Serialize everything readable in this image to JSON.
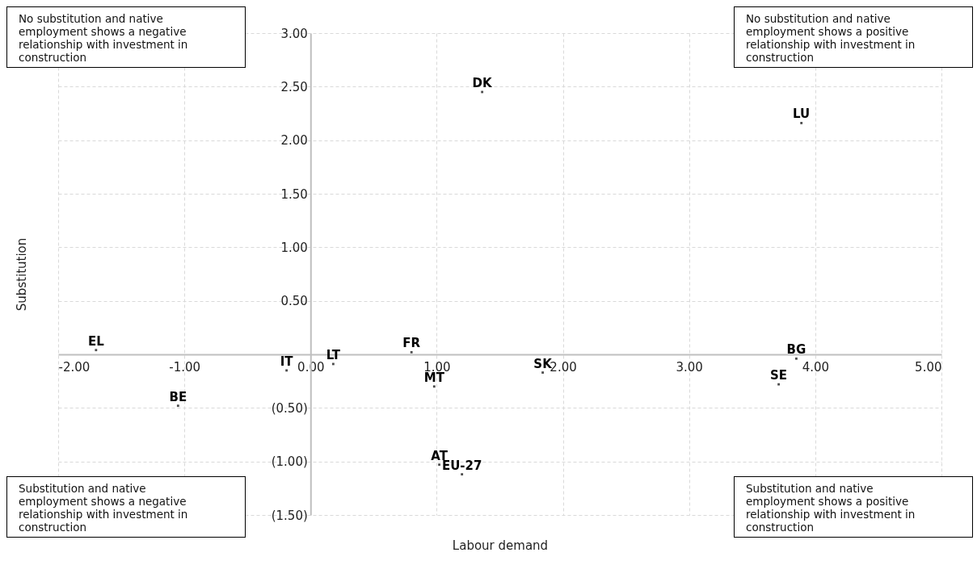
{
  "chart_data": {
    "type": "scatter",
    "xlabel": "Labour demand",
    "ylabel": "Substitution",
    "x": [
      -1.7,
      -1.05,
      -0.19,
      0.18,
      0.8,
      0.98,
      1.84,
      1.36,
      3.89,
      3.85,
      3.71,
      1.02,
      1.2
    ],
    "series": [
      {
        "color": "#000000",
        "values": [
          0.04,
          -0.48,
          -0.15,
          -0.09,
          0.02,
          -0.3,
          -0.17,
          2.45,
          2.16,
          -0.04,
          -0.28,
          -1.03,
          -1.12
        ],
        "value_labels": [
          "EL",
          "BE",
          "IT",
          "LT",
          "FR",
          "MT",
          "SK",
          "DK",
          "LU",
          "BG",
          "SE",
          "AT",
          "EU-27"
        ]
      }
    ],
    "marker": "square",
    "grid": true,
    "legend": false,
    "xlim": [
      -2,
      5
    ],
    "ylim": [
      -1.5,
      3
    ],
    "xticks": [
      {
        "value": -2,
        "label": "-2.00"
      },
      {
        "value": -1,
        "label": "-1.00"
      },
      {
        "value": 0,
        "label": "0.00"
      },
      {
        "value": 1,
        "label": "1.00"
      },
      {
        "value": 2,
        "label": "2.00"
      },
      {
        "value": 3,
        "label": "3.00"
      },
      {
        "value": 4,
        "label": "4.00"
      },
      {
        "value": 5,
        "label": "5.00"
      }
    ],
    "yticks": [
      {
        "value": -1.5,
        "label": "(1.50)"
      },
      {
        "value": -1,
        "label": "(1.00)"
      },
      {
        "value": -0.5,
        "label": "(0.50)"
      },
      {
        "value": 0.5,
        "label": "0.50"
      },
      {
        "value": 1,
        "label": "1.00"
      },
      {
        "value": 1.5,
        "label": "1.50"
      },
      {
        "value": 2,
        "label": "2.00"
      },
      {
        "value": 2.5,
        "label": "2.50"
      },
      {
        "value": 3,
        "label": "3.00"
      }
    ],
    "annotations": [
      "No substitution and native employment shows a negative relationship with investment in construction",
      "No substitution and native employment shows a positive relationship with investment in construction",
      "Substitution and native employment shows a negative relationship with investment in construction",
      "Substitution and native employment shows a positive relationship with investment in construction"
    ]
  }
}
